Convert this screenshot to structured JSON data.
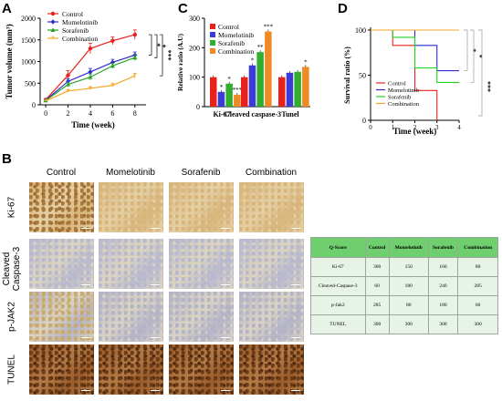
{
  "panel_letters": {
    "a": "A",
    "b": "B",
    "c": "C",
    "d": "D"
  },
  "chart_data": [
    {
      "id": "A",
      "type": "line",
      "title": "",
      "xlabel": "Time (week)",
      "ylabel": "Tumor volume  (mm³)",
      "x": [
        0,
        2,
        4,
        6,
        8
      ],
      "xticks": [
        "0",
        "2",
        "4",
        "6",
        "8"
      ],
      "yticks": [
        "0",
        "500",
        "1000",
        "1500",
        "2000"
      ],
      "ylim": [
        0,
        2000
      ],
      "xlim": [
        -0.5,
        9
      ],
      "legend_position": "top-left",
      "series": [
        {
          "name": "Control",
          "color": "#e8211d",
          "marker": "circle",
          "values": [
            120,
            680,
            1300,
            1480,
            1620
          ],
          "err": [
            20,
            110,
            120,
            90,
            110
          ]
        },
        {
          "name": "Momelotinib",
          "color": "#2e2bd0",
          "marker": "diamond",
          "values": [
            110,
            540,
            760,
            980,
            1150
          ],
          "err": [
            20,
            60,
            80,
            70,
            70
          ]
        },
        {
          "name": "Sorafenib",
          "color": "#28a428",
          "marker": "triangle",
          "values": [
            100,
            470,
            640,
            900,
            1090
          ],
          "err": [
            15,
            55,
            70,
            60,
            70
          ]
        },
        {
          "name": "Combination",
          "color": "#f5a623",
          "marker": "star",
          "values": [
            90,
            320,
            380,
            450,
            670
          ],
          "err": [
            15,
            30,
            40,
            40,
            60
          ]
        }
      ],
      "significance": [
        "*",
        "*",
        "***"
      ]
    },
    {
      "id": "C",
      "type": "bar",
      "title": "",
      "xlabel": "",
      "ylabel": "Relative ratio (A.U)",
      "categories": [
        "Ki-67",
        "Cleaved caspase-3",
        "Tunel"
      ],
      "yticks": [
        "0",
        "100",
        "200",
        "300"
      ],
      "ylim": [
        0,
        300
      ],
      "legend_position": "top-left",
      "series": [
        {
          "name": "Control",
          "color": "#e8211d",
          "values": [
            100,
            100,
            100
          ]
        },
        {
          "name": "Momelotinib",
          "color": "#3b3bd6",
          "values": [
            50,
            140,
            115
          ]
        },
        {
          "name": "Sorafenib",
          "color": "#2fae2f",
          "values": [
            78,
            185,
            118
          ]
        },
        {
          "name": "Combination",
          "color": "#f08a24",
          "values": [
            40,
            255,
            135
          ]
        }
      ],
      "annotations": [
        [
          "",
          "*",
          "*",
          "***"
        ],
        [
          "",
          "*",
          "**",
          "***"
        ],
        [
          "",
          "",
          "",
          "*"
        ]
      ]
    },
    {
      "id": "D",
      "type": "line",
      "title": "",
      "xlabel": "Time (week)",
      "ylabel": "Survival ratio (%)",
      "xticks": [
        "0",
        "1",
        "2",
        "3",
        "4"
      ],
      "yticks": [
        "0",
        "50",
        "100"
      ],
      "xlim": [
        0,
        4
      ],
      "ylim": [
        0,
        100
      ],
      "legend_position": "bottom-left",
      "series": [
        {
          "name": "Control",
          "color": "#e8211d",
          "steps": [
            [
              0,
              100
            ],
            [
              1,
              100
            ],
            [
              1,
              83
            ],
            [
              2,
              83
            ],
            [
              2,
              33
            ],
            [
              3,
              33
            ],
            [
              3,
              0
            ]
          ]
        },
        {
          "name": "Momelotinib",
          "color": "#2e2bd0",
          "steps": [
            [
              0,
              100
            ],
            [
              2,
              100
            ],
            [
              2,
              83
            ],
            [
              3,
              83
            ],
            [
              3,
              55
            ],
            [
              4,
              55
            ]
          ]
        },
        {
          "name": "Sorafenib",
          "color": "#22d322",
          "steps": [
            [
              0,
              100
            ],
            [
              1,
              100
            ],
            [
              1,
              92
            ],
            [
              2,
              92
            ],
            [
              2,
              58
            ],
            [
              3,
              58
            ],
            [
              3,
              42
            ],
            [
              4,
              42
            ]
          ]
        },
        {
          "name": "Combination",
          "color": "#f5a623",
          "steps": [
            [
              0,
              100
            ],
            [
              4,
              100
            ]
          ]
        }
      ],
      "significance": [
        "*",
        "*",
        "***"
      ]
    }
  ],
  "histology": {
    "columns": [
      "Control",
      "Momelotinib",
      "Sorafenib",
      "Combination"
    ],
    "rows": [
      "Ki-67",
      "Cleaved Caspase-3",
      "p-JAK2",
      "TUNEL"
    ]
  },
  "qscore_table": {
    "header": [
      "Q-Score",
      "Control",
      "Momelotinib",
      "Sorafenib",
      "Combination"
    ],
    "rows": [
      [
        "Ki-67",
        "300",
        "150",
        "160",
        "80"
      ],
      [
        "Cleaved-Caspase-3",
        "60",
        "180",
        "240",
        "285"
      ],
      [
        "p-Jak2",
        "285",
        "80",
        "180",
        "60"
      ],
      [
        "TUNEL",
        "300",
        "300",
        "300",
        "300"
      ]
    ]
  }
}
